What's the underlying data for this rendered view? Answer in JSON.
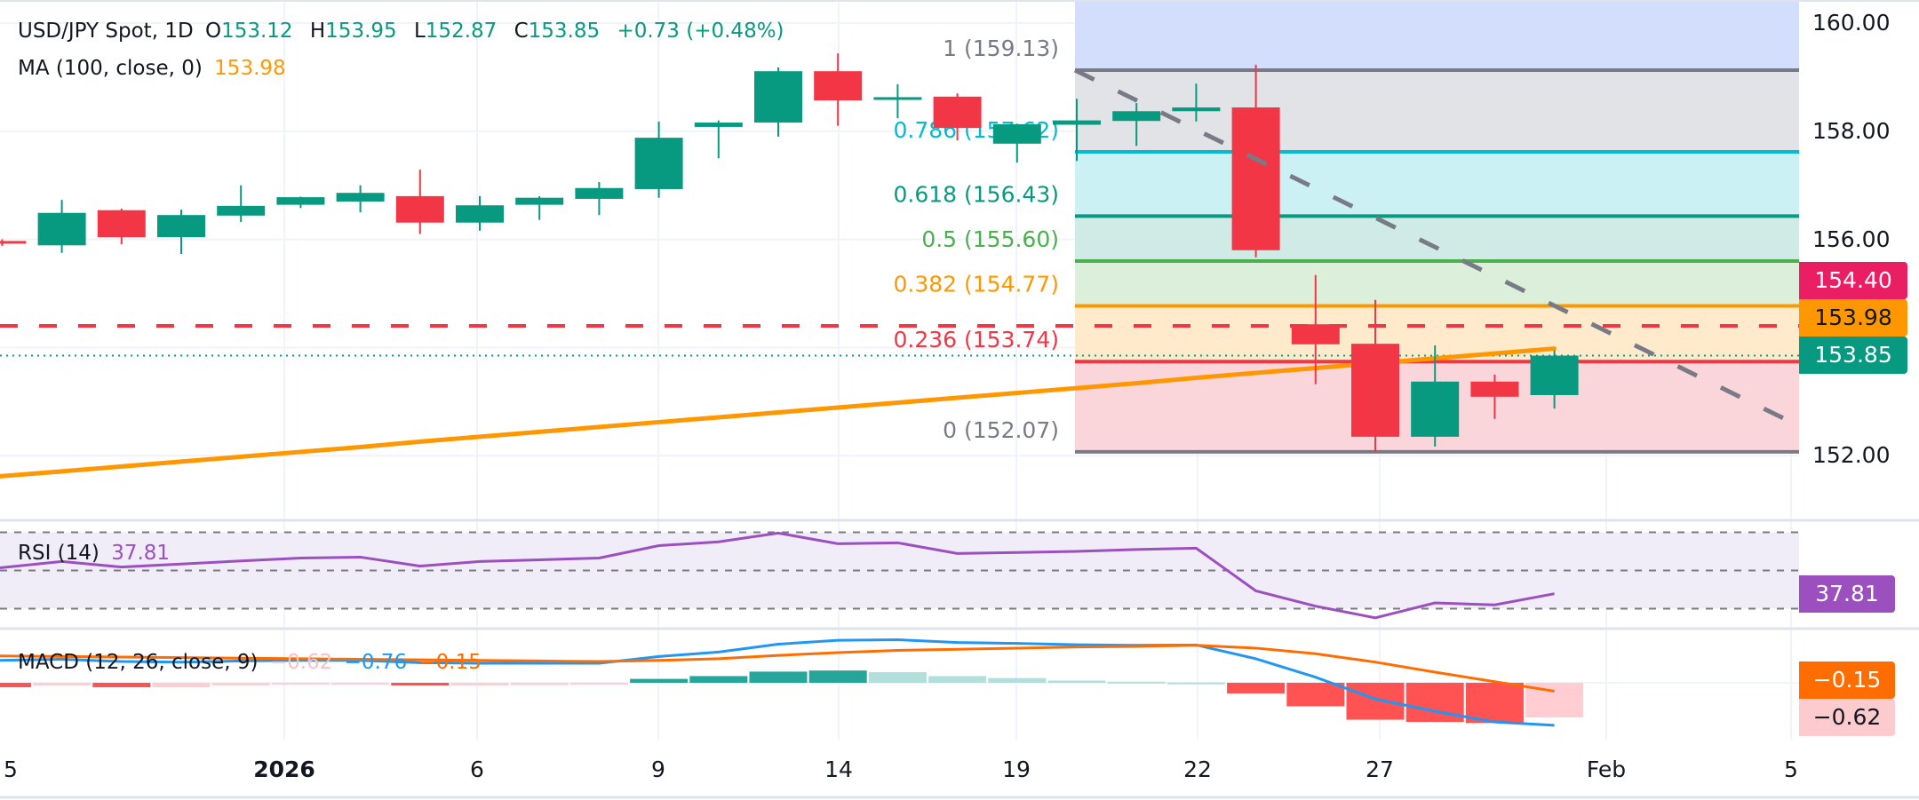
{
  "header": {
    "symbol": "USD/JPY Spot, 1D",
    "o_label": "O",
    "o": "153.12",
    "h_label": "H",
    "h": "153.95",
    "l_label": "L",
    "l": "152.87",
    "c_label": "C",
    "c": "153.85",
    "change": "+0.73 (+0.48%)",
    "ma_label": "MA (100, close, 0)",
    "ma_value": "153.98"
  },
  "rsi_legend": {
    "label": "RSI (14)",
    "value": "37.81"
  },
  "macd_legend": {
    "label": "MACD (12, 26, close, 9)",
    "hist": "−0.62",
    "macd": "−0.76",
    "signal": "−0.15"
  },
  "price_axis": [
    "160.00",
    "158.00",
    "156.00",
    "152.00"
  ],
  "badges": {
    "resistance": "154.40",
    "ma": "153.98",
    "last": "153.85",
    "rsi": "37.81",
    "signal": "−0.15",
    "hist": "−0.62"
  },
  "colors": {
    "up": "#089981",
    "down": "#f23645",
    "ma": "#ff9800",
    "rsi": "#9c4fbf",
    "macd": "#2196f3",
    "signal": "#ff6d00",
    "hline": "#f23645"
  },
  "chart_data": {
    "type": "candlestick",
    "symbol": "USD/JPY Spot",
    "interval": "1D",
    "x_tick_labels": [
      "5",
      "2026",
      "6",
      "9",
      "14",
      "19",
      "22",
      "27",
      "Feb",
      "5"
    ],
    "ylim": [
      151.2,
      160.4
    ],
    "grid": true,
    "candles": [
      {
        "o": 155.97,
        "h": 156.0,
        "l": 155.88,
        "c": 155.93
      },
      {
        "o": 155.89,
        "h": 156.73,
        "l": 155.75,
        "c": 156.49
      },
      {
        "o": 156.54,
        "h": 156.57,
        "l": 155.91,
        "c": 156.04
      },
      {
        "o": 156.04,
        "h": 156.55,
        "l": 155.73,
        "c": 156.45
      },
      {
        "o": 156.44,
        "h": 157.0,
        "l": 156.32,
        "c": 156.62
      },
      {
        "o": 156.64,
        "h": 156.79,
        "l": 156.58,
        "c": 156.78
      },
      {
        "o": 156.7,
        "h": 157.0,
        "l": 156.5,
        "c": 156.86
      },
      {
        "o": 156.8,
        "h": 157.29,
        "l": 156.1,
        "c": 156.31
      },
      {
        "o": 156.31,
        "h": 156.8,
        "l": 156.16,
        "c": 156.63
      },
      {
        "o": 156.64,
        "h": 156.8,
        "l": 156.36,
        "c": 156.77
      },
      {
        "o": 156.75,
        "h": 157.06,
        "l": 156.45,
        "c": 156.95
      },
      {
        "o": 156.93,
        "h": 158.18,
        "l": 156.77,
        "c": 157.88
      },
      {
        "o": 158.08,
        "h": 158.2,
        "l": 157.5,
        "c": 158.16
      },
      {
        "o": 158.16,
        "h": 159.18,
        "l": 157.9,
        "c": 159.11
      },
      {
        "o": 159.11,
        "h": 159.44,
        "l": 158.1,
        "c": 158.57
      },
      {
        "o": 158.58,
        "h": 158.87,
        "l": 158.24,
        "c": 158.63
      },
      {
        "o": 158.64,
        "h": 158.7,
        "l": 157.83,
        "c": 158.06
      },
      {
        "o": 157.77,
        "h": 158.14,
        "l": 157.42,
        "c": 158.13
      },
      {
        "o": 158.12,
        "h": 158.6,
        "l": 157.45,
        "c": 158.2
      },
      {
        "o": 158.19,
        "h": 158.52,
        "l": 157.73,
        "c": 158.37
      },
      {
        "o": 158.37,
        "h": 158.88,
        "l": 158.18,
        "c": 158.44
      },
      {
        "o": 158.44,
        "h": 159.23,
        "l": 155.67,
        "c": 155.8
      },
      {
        "o": 154.43,
        "h": 155.34,
        "l": 153.32,
        "c": 154.06
      },
      {
        "o": 154.07,
        "h": 154.88,
        "l": 152.07,
        "c": 152.35
      },
      {
        "o": 152.35,
        "h": 154.04,
        "l": 152.17,
        "c": 153.37
      },
      {
        "o": 153.37,
        "h": 153.5,
        "l": 152.68,
        "c": 153.09
      },
      {
        "o": 153.12,
        "h": 153.95,
        "l": 152.87,
        "c": 153.85
      }
    ],
    "ma100": [
      151.62,
      151.71,
      151.8,
      151.89,
      151.98,
      152.07,
      152.16,
      152.26,
      152.35,
      152.44,
      152.53,
      152.62,
      152.71,
      152.8,
      152.89,
      152.98,
      153.07,
      153.16,
      153.25,
      153.34,
      153.44,
      153.53,
      153.62,
      153.71,
      153.8,
      153.89,
      153.98
    ],
    "horizontal_levels": [
      {
        "price": 154.4,
        "style": "dashed"
      },
      {
        "price": 153.85,
        "style": "dotted"
      }
    ],
    "fibonacci": [
      {
        "ratio": "1",
        "price": 159.13,
        "label": "1 (159.13)",
        "color": "#787b86",
        "fill": "#e2e3e6"
      },
      {
        "ratio": "0.786",
        "price": 157.62,
        "label": "0.786 (157.62)",
        "color": "#00bcd4",
        "fill": "#ccf1f4"
      },
      {
        "ratio": "0.618",
        "price": 156.43,
        "label": "0.618 (156.43)",
        "color": "#089981",
        "fill": "#d0ebe5"
      },
      {
        "ratio": "0.5",
        "price": 155.6,
        "label": "0.5 (155.60)",
        "color": "#4caf50",
        "fill": "#dcefda"
      },
      {
        "ratio": "0.382",
        "price": 154.77,
        "label": "0.382 (154.77)",
        "color": "#ff9800",
        "fill": "#ffeacc"
      },
      {
        "ratio": "0.236",
        "price": 153.74,
        "label": "0.236 (153.74)",
        "color": "#f23645",
        "fill": "#fad6da"
      },
      {
        "ratio": "0",
        "price": 152.07,
        "label": "0 (152.07)",
        "color": "#787b86",
        "fill": null
      }
    ],
    "fib_top_fill": "#d3defc",
    "trendline": {
      "from_price": 159.13,
      "to_price": 152.55,
      "style": "dashed"
    },
    "rsi": {
      "period": 14,
      "bands": [
        70,
        50,
        30
      ],
      "values": [
        51.4,
        54.7,
        51.8,
        53.4,
        55.0,
        56.5,
        57.0,
        52.3,
        54.7,
        55.6,
        56.5,
        63.0,
        65.0,
        69.6,
        64.0,
        64.5,
        58.9,
        59.4,
        60.0,
        61.0,
        61.7,
        39.3,
        31.3,
        25.2,
        33.0,
        32.0,
        37.81
      ]
    },
    "macd": {
      "params": [
        12,
        26,
        9
      ],
      "histogram": [
        -0.08,
        -0.05,
        -0.08,
        -0.08,
        -0.05,
        -0.03,
        -0.02,
        -0.05,
        -0.05,
        -0.04,
        -0.03,
        0.07,
        0.12,
        0.2,
        0.22,
        0.19,
        0.12,
        0.085,
        0.04,
        0.02,
        0.005,
        -0.19,
        -0.42,
        -0.66,
        -0.7,
        -0.72,
        -0.62
      ],
      "signal": [
        0.48,
        0.47,
        0.46,
        0.45,
        0.44,
        0.43,
        0.42,
        0.41,
        0.4,
        0.39,
        0.38,
        0.4,
        0.43,
        0.49,
        0.54,
        0.58,
        0.6,
        0.62,
        0.64,
        0.65,
        0.67,
        0.62,
        0.52,
        0.37,
        0.19,
        0.02,
        -0.15
      ],
      "macd": [
        0.4,
        0.42,
        0.38,
        0.37,
        0.39,
        0.4,
        0.4,
        0.36,
        0.35,
        0.35,
        0.35,
        0.47,
        0.55,
        0.69,
        0.76,
        0.77,
        0.72,
        0.705,
        0.68,
        0.67,
        0.675,
        0.43,
        0.1,
        -0.29,
        -0.51,
        -0.7,
        -0.76
      ]
    }
  }
}
